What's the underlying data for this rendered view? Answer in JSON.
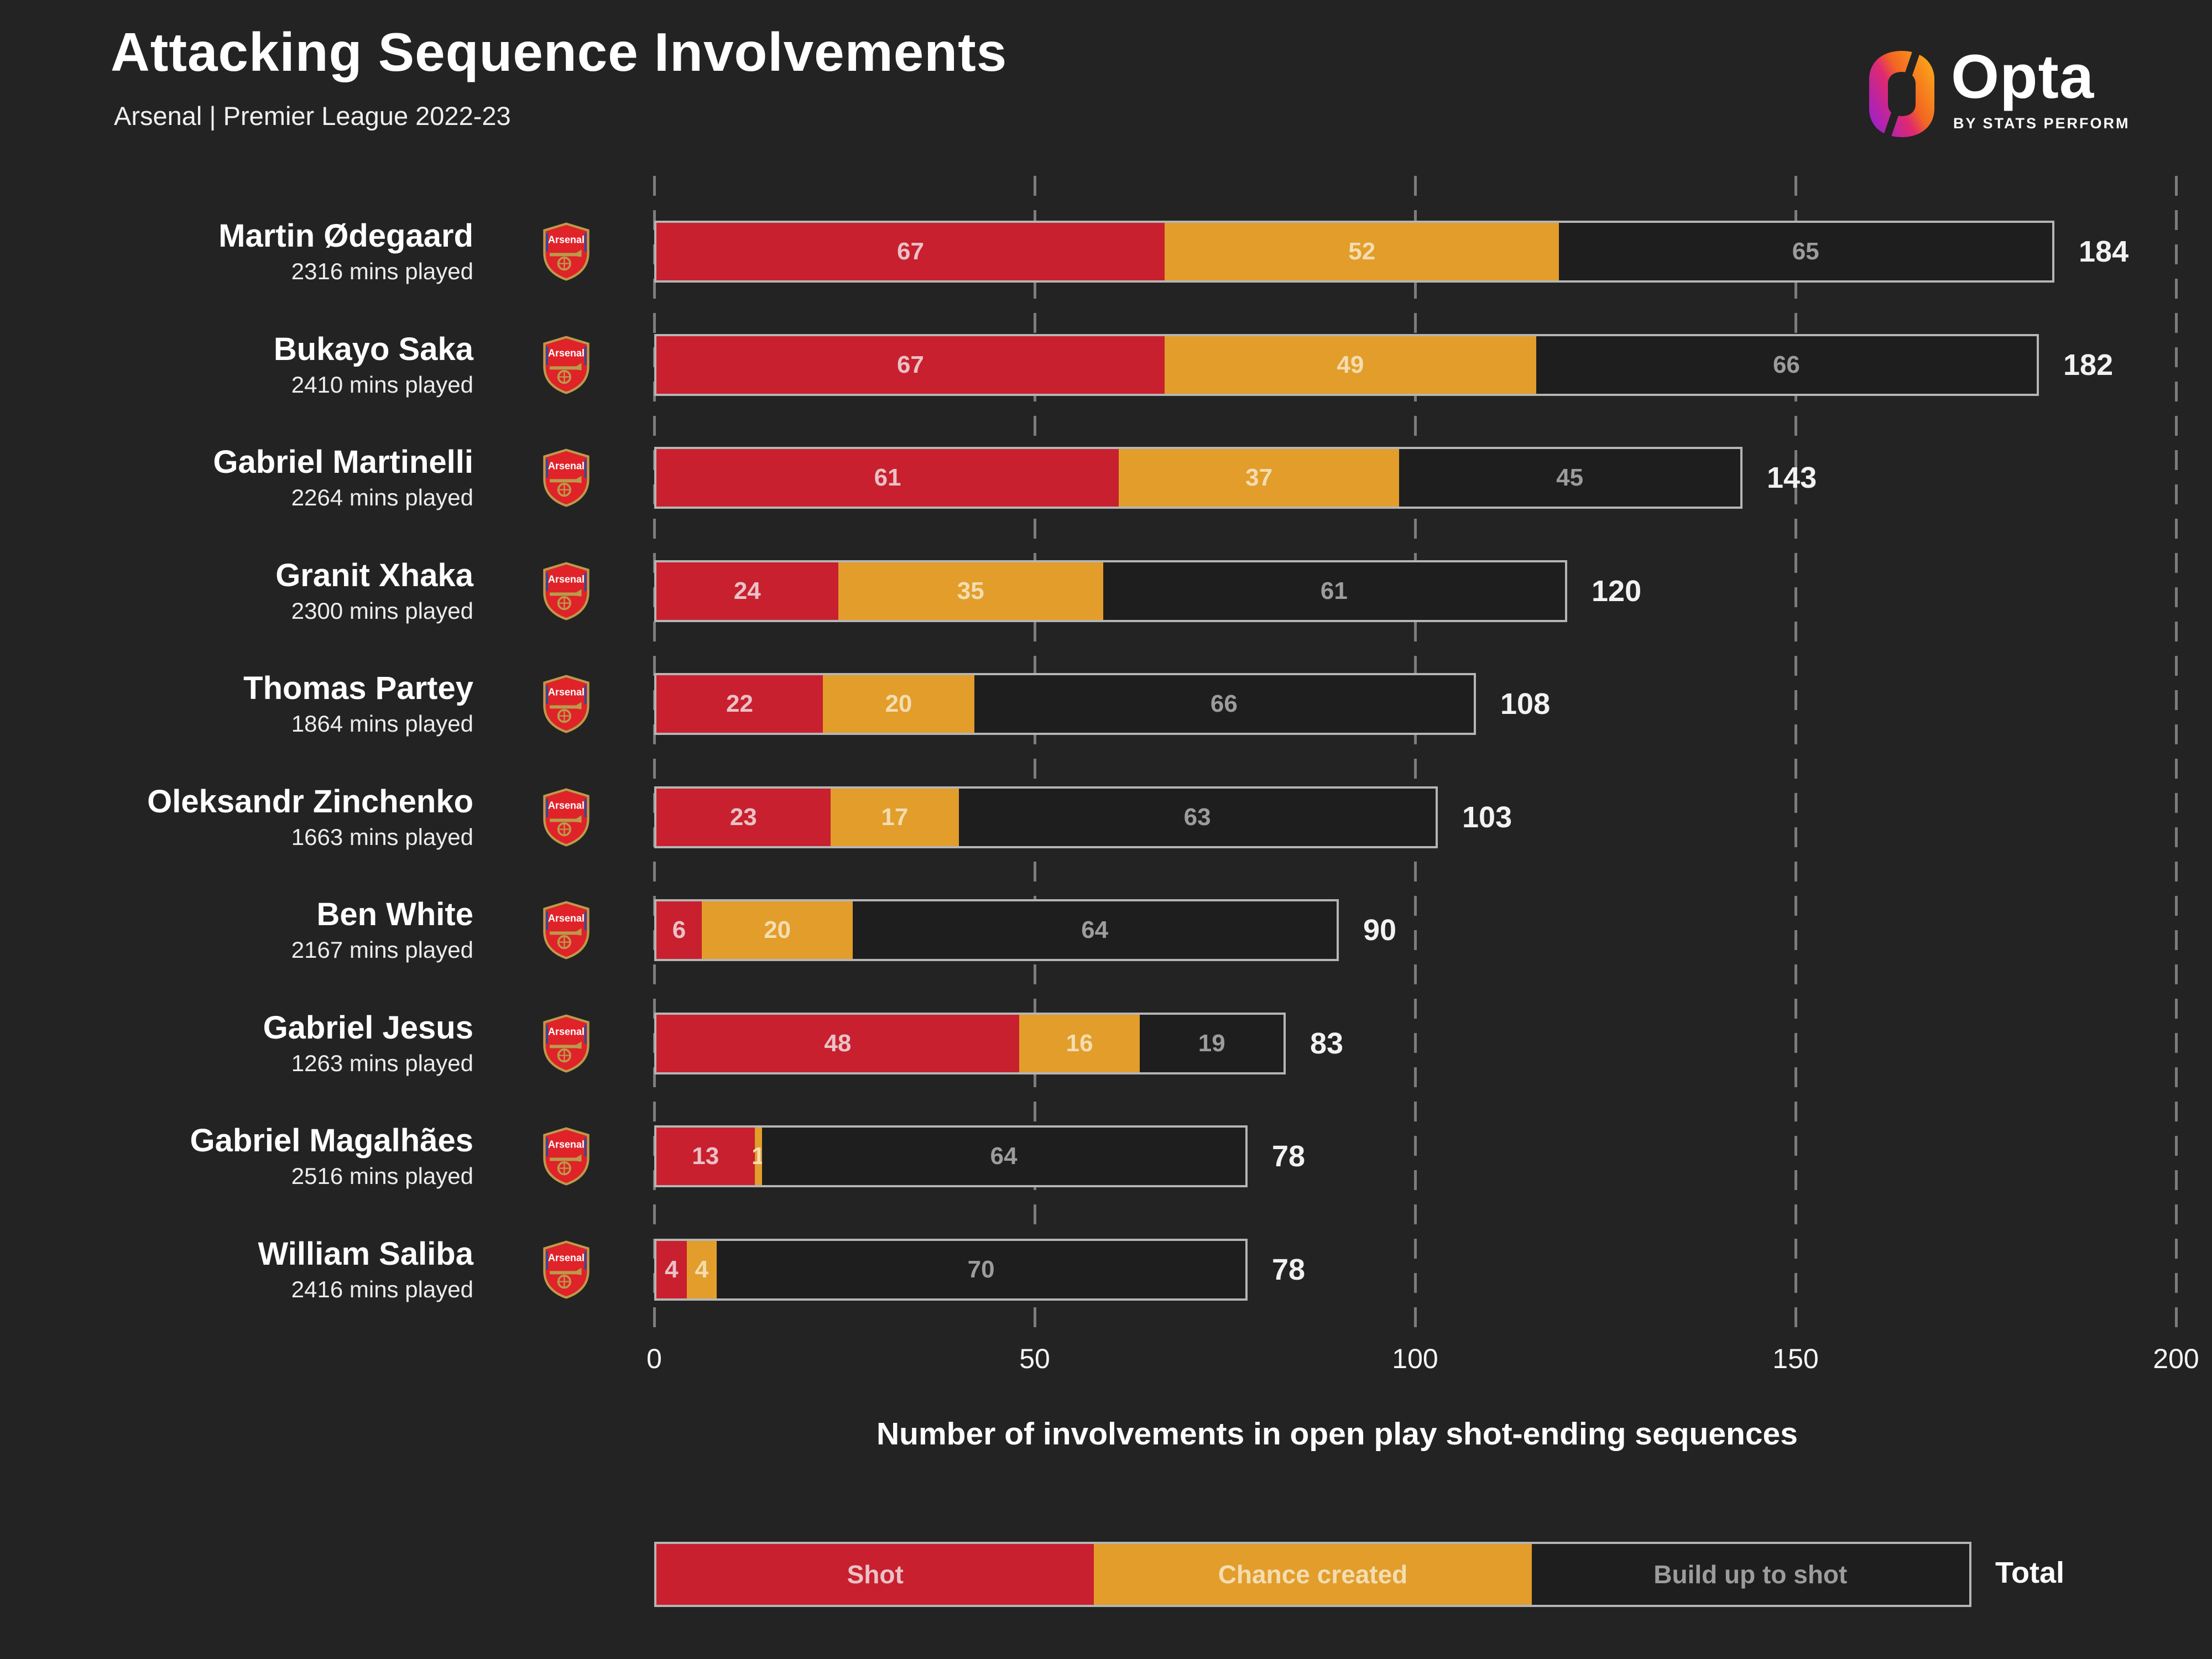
{
  "header": {
    "title": "Attacking Sequence Involvements",
    "subtitle": "Arsenal | Premier League 2022-23"
  },
  "logo": {
    "brand": "Opta",
    "byline": "BY STATS PERFORM"
  },
  "chart_data": {
    "type": "bar",
    "stacked": true,
    "orientation": "horizontal",
    "title": "Attacking Sequence Involvements",
    "subtitle": "Arsenal | Premier League 2022-23",
    "xlabel": "Number of involvements in open play shot-ending sequences",
    "xlim": [
      0,
      200
    ],
    "xticks": [
      0,
      50,
      100,
      150,
      200
    ],
    "grid": "dashed-vertical",
    "legend_position": "bottom",
    "series_names": [
      "Shot",
      "Chance created",
      "Build up to shot"
    ],
    "team_badge": "arsenal-crest",
    "players": [
      {
        "name": "Martin Ødegaard",
        "mins_played": "2316 mins played",
        "shot": 67,
        "chance_created": 52,
        "build_up_to_shot": 65,
        "total": 184
      },
      {
        "name": "Bukayo Saka",
        "mins_played": "2410 mins played",
        "shot": 67,
        "chance_created": 49,
        "build_up_to_shot": 66,
        "total": 182
      },
      {
        "name": "Gabriel Martinelli",
        "mins_played": "2264 mins played",
        "shot": 61,
        "chance_created": 37,
        "build_up_to_shot": 45,
        "total": 143
      },
      {
        "name": "Granit Xhaka",
        "mins_played": "2300 mins played",
        "shot": 24,
        "chance_created": 35,
        "build_up_to_shot": 61,
        "total": 120
      },
      {
        "name": "Thomas Partey",
        "mins_played": "1864 mins played",
        "shot": 22,
        "chance_created": 20,
        "build_up_to_shot": 66,
        "total": 108
      },
      {
        "name": "Oleksandr Zinchenko",
        "mins_played": "1663 mins played",
        "shot": 23,
        "chance_created": 17,
        "build_up_to_shot": 63,
        "total": 103
      },
      {
        "name": "Ben White",
        "mins_played": "2167 mins played",
        "shot": 6,
        "chance_created": 20,
        "build_up_to_shot": 64,
        "total": 90
      },
      {
        "name": "Gabriel Jesus",
        "mins_played": "1263 mins played",
        "shot": 48,
        "chance_created": 16,
        "build_up_to_shot": 19,
        "total": 83
      },
      {
        "name": "Gabriel Magalhães",
        "mins_played": "2516 mins played",
        "shot": 13,
        "chance_created": 1,
        "build_up_to_shot": 64,
        "total": 78
      },
      {
        "name": "William Saliba",
        "mins_played": "2416 mins played",
        "shot": 4,
        "chance_created": 4,
        "build_up_to_shot": 70,
        "total": 78
      }
    ]
  },
  "legend": {
    "items": [
      {
        "label": "Shot",
        "color": "#c8202e"
      },
      {
        "label": "Chance created",
        "color": "#e29d2b"
      },
      {
        "label": "Build up to shot",
        "color": "#1e1e1f"
      }
    ],
    "total_label": "Total"
  },
  "colors": {
    "background": "#232323",
    "shot": "#c8202e",
    "chance_created": "#e29d2b",
    "build_up_to_shot": "#1e1e1f",
    "bar_border": "#b5b5b5",
    "gridline": "#7c7c7c",
    "text_primary": "#ffffff"
  }
}
